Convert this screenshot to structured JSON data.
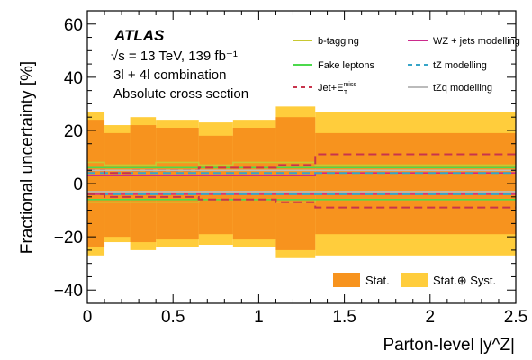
{
  "chart_data": {
    "type": "line",
    "experiment": "ATLAS",
    "annotations": [
      "√s = 13 TeV, 139 fb⁻¹",
      "3l + 4l combination",
      "Absolute cross section"
    ],
    "xlabel": "Parton-level |y^Z|",
    "ylabel": "Fractional uncertainty [%]",
    "xlim": [
      0,
      2.5
    ],
    "ylim": [
      -45,
      65
    ],
    "x_ticks": [
      0,
      0.5,
      1,
      1.5,
      2,
      2.5
    ],
    "y_ticks": [
      -40,
      -20,
      0,
      20,
      40,
      60
    ],
    "bin_edges": [
      0,
      0.1,
      0.25,
      0.4,
      0.65,
      0.85,
      1.1,
      1.33,
      2.5
    ],
    "bands": [
      {
        "name": "Stat.⊕ Syst.",
        "color": "#FFCD3C",
        "up": [
          27,
          22,
          25,
          24,
          23,
          24,
          29,
          27
        ],
        "down": [
          -27,
          -22,
          -25,
          -24,
          -23,
          -24,
          -28,
          -27
        ]
      },
      {
        "name": "Stat.",
        "color": "#F7931E",
        "up": [
          24,
          19,
          22,
          21,
          18,
          21,
          25,
          19
        ],
        "down": [
          -24,
          -20,
          -22,
          -21,
          -19,
          -21,
          -25,
          -19
        ]
      }
    ],
    "series": [
      {
        "name": "b-tagging",
        "color": "#C8C832",
        "style": "solid",
        "up": [
          8,
          7,
          7,
          8,
          7,
          8,
          8,
          7
        ],
        "down": [
          -7,
          -7,
          -7,
          -7,
          -6,
          -6,
          -7,
          -6
        ]
      },
      {
        "name": "WZ + jets modelling",
        "color": "#CC2A8C",
        "style": "solid",
        "up": [
          3,
          3,
          3,
          3,
          3,
          3,
          3,
          4
        ],
        "down": [
          -4,
          -4,
          -4,
          -4,
          -4,
          -4,
          -4,
          -4
        ]
      },
      {
        "name": "Fake leptons",
        "color": "#4CD94C",
        "style": "solid",
        "up": [
          6,
          6,
          6,
          6,
          6,
          6,
          6,
          6
        ],
        "down": [
          -6,
          -6,
          -6,
          -6,
          -6,
          -6,
          -6,
          -6
        ]
      },
      {
        "name": "tZ modelling",
        "color": "#37A5C8",
        "style": "dashed",
        "up": [
          4,
          4,
          4,
          4,
          4,
          4,
          4,
          4
        ],
        "down": [
          -4,
          -4,
          -4,
          -4,
          -4,
          -4,
          -4,
          -4
        ]
      },
      {
        "name": "Jet+E_T^miss",
        "color": "#C8344C",
        "style": "dashed",
        "up": [
          5,
          4,
          5,
          5,
          6,
          6,
          7,
          11
        ],
        "down": [
          -4,
          -5,
          -5,
          -5,
          -6,
          -6,
          -7,
          -9
        ]
      },
      {
        "name": "tZq modelling",
        "color": "#BBBBBB",
        "style": "solid",
        "up": [
          5,
          5,
          5,
          5,
          5,
          5,
          5,
          5
        ],
        "down": [
          -3,
          -3,
          -3,
          -3,
          -3,
          -3,
          -3,
          -3
        ]
      }
    ]
  }
}
